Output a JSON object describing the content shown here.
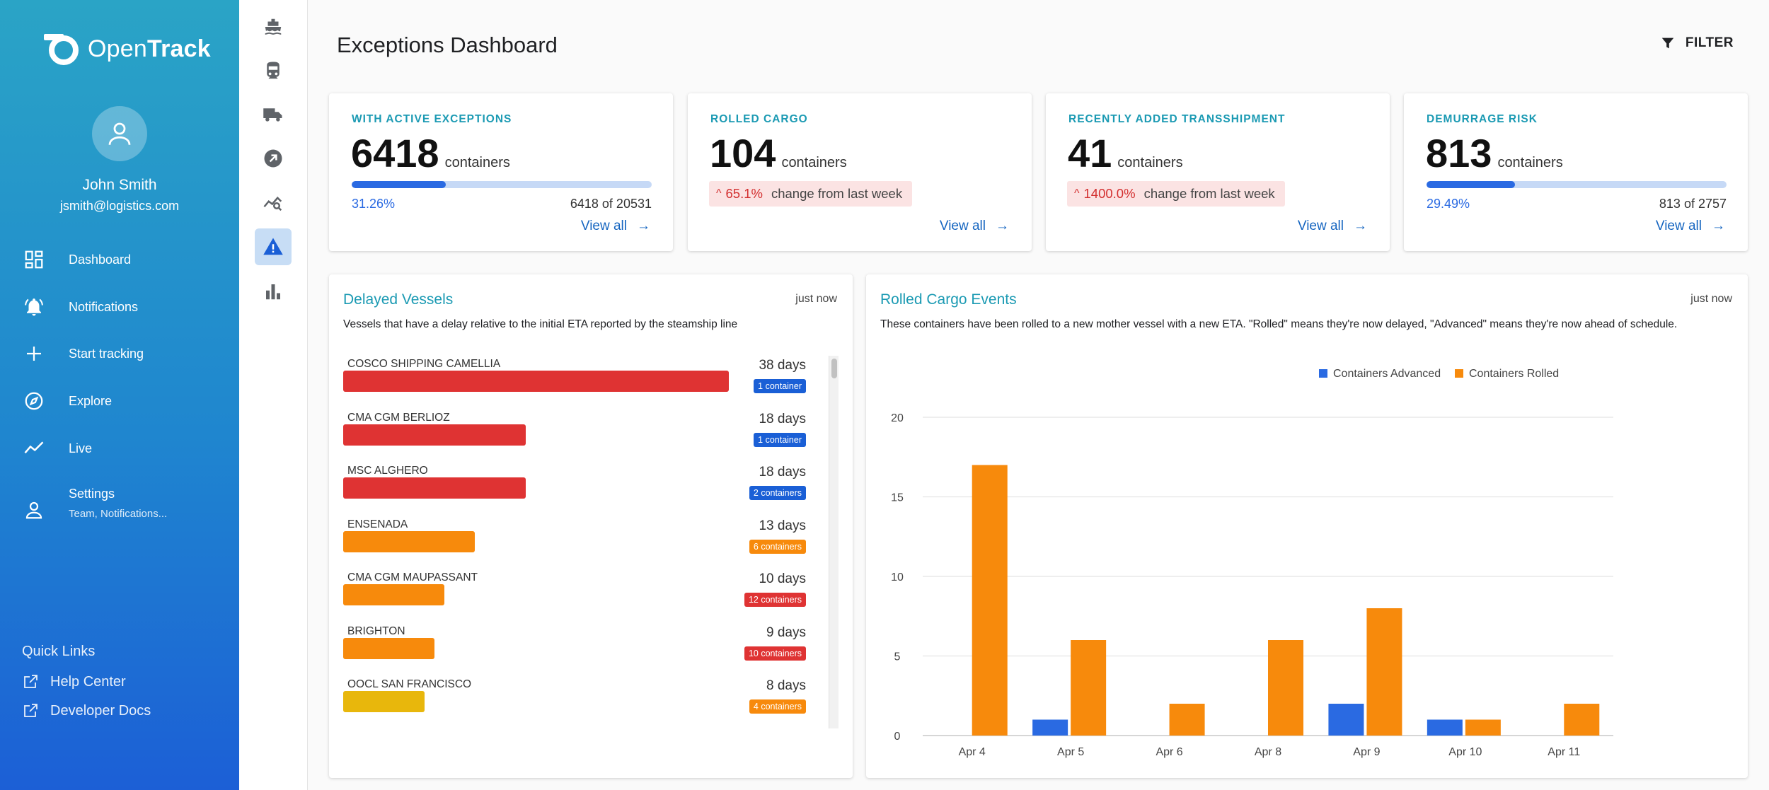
{
  "brand": {
    "name_light": "Open",
    "name_bold": "Track"
  },
  "user": {
    "name": "John Smith",
    "email": "jsmith@logistics.com"
  },
  "nav": [
    {
      "label": "Dashboard",
      "icon": "dashboard-icon"
    },
    {
      "label": "Notifications",
      "icon": "bell-icon"
    },
    {
      "label": "Start tracking",
      "icon": "plus-icon"
    },
    {
      "label": "Explore",
      "icon": "compass-icon"
    },
    {
      "label": "Live",
      "icon": "trend-line-icon"
    },
    {
      "label": "Settings",
      "sub": "Team, Notifications...",
      "icon": "person-icon"
    }
  ],
  "quick_links": {
    "title": "Quick Links",
    "items": [
      "Help Center",
      "Developer Docs"
    ]
  },
  "rail": [
    "ship-icon",
    "train-icon",
    "truck-icon",
    "arrow-circle-icon",
    "chart-search-icon",
    "warning-icon",
    "bar-chart-icon"
  ],
  "header": {
    "title": "Exceptions Dashboard",
    "filter_label": "FILTER"
  },
  "stats": [
    {
      "label": "WITH ACTIVE EXCEPTIONS",
      "value": "6418",
      "unit": "containers",
      "progress": 0.3126,
      "progress_pct": "31.26%",
      "progress_of": "6418 of 20531",
      "view_all": "View all"
    },
    {
      "label": "ROLLED CARGO",
      "value": "104",
      "unit": "containers",
      "change_pct": "65.1%",
      "change_text": "change from last week",
      "view_all": "View all"
    },
    {
      "label": "RECENTLY ADDED TRANSSHIPMENT",
      "value": "41",
      "unit": "containers",
      "change_pct": "1400.0%",
      "change_text": "change from last week",
      "view_all": "View all"
    },
    {
      "label": "DEMURRAGE RISK",
      "value": "813",
      "unit": "containers",
      "progress": 0.2949,
      "progress_pct": "29.49%",
      "progress_of": "813 of 2757",
      "view_all": "View all"
    }
  ],
  "delayed": {
    "title": "Delayed Vessels",
    "time": "just now",
    "subtitle": "Vessels that have a delay relative to the initial ETA reported by the steamship line",
    "max_days": 38,
    "vessels": [
      {
        "name": "COSCO SHIPPING CAMELLIA",
        "days_value": 38,
        "days": "38 days",
        "badge": "1 container",
        "bar_color": "#df3333",
        "badge_color": "#1a5fd6"
      },
      {
        "name": "CMA CGM BERLIOZ",
        "days_value": 18,
        "days": "18 days",
        "badge": "1 container",
        "bar_color": "#df3333",
        "badge_color": "#1a5fd6"
      },
      {
        "name": "MSC ALGHERO",
        "days_value": 18,
        "days": "18 days",
        "badge": "2 containers",
        "bar_color": "#df3333",
        "badge_color": "#1a5fd6"
      },
      {
        "name": "ENSENADA",
        "days_value": 13,
        "days": "13 days",
        "badge": "6 containers",
        "bar_color": "#f78a0c",
        "badge_color": "#f78a0c"
      },
      {
        "name": "CMA CGM MAUPASSANT",
        "days_value": 10,
        "days": "10 days",
        "badge": "12 containers",
        "bar_color": "#f78a0c",
        "badge_color": "#df3333"
      },
      {
        "name": "BRIGHTON",
        "days_value": 9,
        "days": "9 days",
        "badge": "10 containers",
        "bar_color": "#f78a0c",
        "badge_color": "#df3333"
      },
      {
        "name": "OOCL SAN FRANCISCO",
        "days_value": 8,
        "days": "8 days",
        "badge": "4 containers",
        "bar_color": "#e8b70c",
        "badge_color": "#f78a0c"
      }
    ]
  },
  "rolled": {
    "title": "Rolled Cargo Events",
    "time": "just now",
    "subtitle": "These containers have been rolled to a new mother vessel with a new ETA. \"Rolled\" means they're now delayed, \"Advanced\" means they're now ahead of schedule."
  },
  "chart_data": {
    "type": "bar",
    "categories": [
      "Apr 4",
      "Apr 5",
      "Apr 6",
      "Apr 8",
      "Apr 9",
      "Apr 10",
      "Apr 11"
    ],
    "series": [
      {
        "name": "Containers Advanced",
        "color": "#2a6ae2",
        "values": [
          0,
          1,
          0,
          0,
          2,
          1,
          0
        ]
      },
      {
        "name": "Containers Rolled",
        "color": "#f78a0c",
        "values": [
          17,
          6,
          2,
          6,
          8,
          1,
          2
        ]
      }
    ],
    "yticks": [
      0,
      5,
      10,
      15,
      20
    ],
    "ylim": [
      0,
      20
    ],
    "grid": true,
    "legend": "top-center"
  }
}
